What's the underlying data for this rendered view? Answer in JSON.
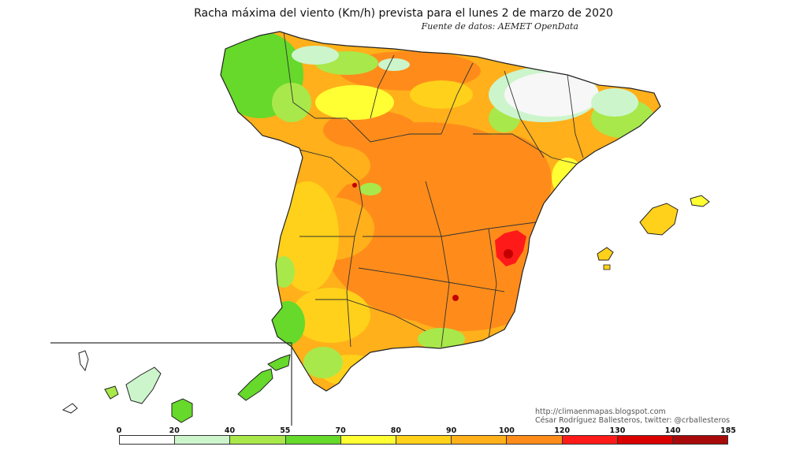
{
  "title": "Racha máxima del viento (Km/h) prevista para el lunes 2 de marzo de 2020",
  "source": "Fuente de datos: AEMET OpenData",
  "credit_line1": "http://climaenmapas.blogspot.com",
  "credit_line2": "César Rodríguez Ballesteros, twitter: @crballesteros",
  "legend": {
    "ticks": [
      "0",
      "20",
      "40",
      "55",
      "70",
      "80",
      "90",
      "100",
      "120",
      "130",
      "140",
      "185"
    ],
    "colors": [
      "#ffffff",
      "#ccf5cc",
      "#a8e84a",
      "#66d92a",
      "#ffff33",
      "#ffd11a",
      "#ffb01a",
      "#ff8c1a",
      "#ff1a1a",
      "#d90000",
      "#a80a0a"
    ]
  },
  "palette": {
    "calm": "#f7f7f7",
    "pale_green": "#ccf5cc",
    "light_green": "#a8e84a",
    "green": "#66d92a",
    "yellow": "#ffff33",
    "gold": "#ffd11a",
    "light_orange": "#ffb01a",
    "orange": "#ff8c1a",
    "red": "#ff1a1a",
    "dark_red": "#c30000",
    "border": "#333333"
  }
}
